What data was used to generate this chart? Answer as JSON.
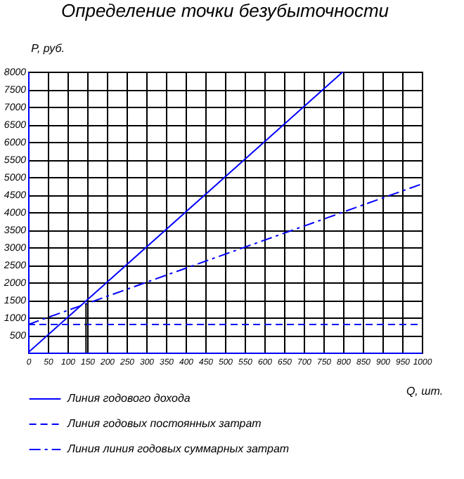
{
  "chart_data": {
    "type": "line",
    "title": "Определение точки безубыточности",
    "xlabel": "Q, шт.",
    "ylabel": "P, руб.",
    "xlim": [
      0,
      1000
    ],
    "xticks": [
      0,
      50,
      100,
      150,
      200,
      250,
      300,
      350,
      400,
      450,
      500,
      550,
      600,
      650,
      700,
      750,
      800,
      850,
      900,
      950,
      1000
    ],
    "ylim": [
      0,
      8000
    ],
    "yticks": [
      500,
      1000,
      1500,
      2000,
      2500,
      3000,
      3500,
      4000,
      4500,
      5000,
      5500,
      6000,
      6500,
      7000,
      7500,
      8000
    ],
    "grid": true,
    "legend": "bottom",
    "series": [
      {
        "name": "Линия годового дохода",
        "color": "#0000ff",
        "line_style": "solid",
        "x": [
          0,
          800
        ],
        "values": [
          0,
          8000
        ]
      },
      {
        "name": "Линия годовых постоянных затрат",
        "color": "#0000ff",
        "line_style": "dashed",
        "x": [
          0,
          1000
        ],
        "values": [
          800,
          800
        ]
      },
      {
        "name": "Линия линия годовых суммарных затрат",
        "color": "#0000ff",
        "line_style": "dashdot",
        "x": [
          0,
          1000
        ],
        "values": [
          800,
          4800
        ]
      },
      {
        "color": "#000000",
        "line_style": "solid",
        "x": [
          147,
          147
        ],
        "values": [
          0,
          1400
        ]
      }
    ]
  }
}
